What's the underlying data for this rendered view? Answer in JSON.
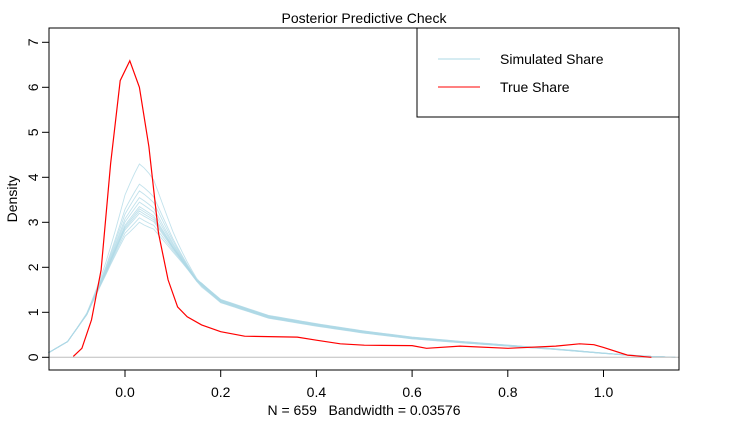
{
  "chart_data": {
    "type": "line",
    "title": "Posterior Predictive Check",
    "xlabel": "N = 659   Bandwidth = 0.03576",
    "ylabel": "Density",
    "xlim": [
      -0.16,
      1.16
    ],
    "ylim": [
      -0.25,
      7.35
    ],
    "x_ticks": [
      "0.0",
      "0.2",
      "0.4",
      "0.6",
      "0.8",
      "1.0"
    ],
    "y_ticks": [
      "0",
      "1",
      "2",
      "3",
      "4",
      "5",
      "6",
      "7"
    ],
    "grid": false,
    "legend": {
      "placement": "top-right",
      "entries": [
        "Simulated Share",
        "True Share"
      ]
    },
    "colors": {
      "simulated": "#add8e6",
      "true": "#ff0000",
      "zero_line": "#bebebe"
    },
    "series": [
      {
        "name": "Simulated Share",
        "x": [
          -0.16,
          -0.12,
          -0.08,
          -0.04,
          0.0,
          0.03,
          0.06,
          0.1,
          0.15,
          0.2,
          0.3,
          0.4,
          0.5,
          0.6,
          0.7,
          0.8,
          0.9,
          1.0,
          1.05,
          1.1,
          1.16
        ],
        "y": [
          0.1,
          0.35,
          0.95,
          1.9,
          2.9,
          3.3,
          3.1,
          2.45,
          1.7,
          1.25,
          0.9,
          0.72,
          0.56,
          0.43,
          0.34,
          0.26,
          0.18,
          0.09,
          0.05,
          0.02,
          0.0
        ],
        "simulated_peak_heights": [
          3.0,
          3.1,
          3.2,
          3.25,
          3.3,
          3.35,
          3.45,
          3.55,
          3.7,
          3.85,
          4.3
        ]
      },
      {
        "name": "True Share",
        "x": [
          -0.108,
          -0.09,
          -0.07,
          -0.05,
          -0.03,
          -0.01,
          0.01,
          0.03,
          0.05,
          0.07,
          0.09,
          0.11,
          0.13,
          0.16,
          0.2,
          0.25,
          0.36,
          0.4,
          0.45,
          0.5,
          0.6,
          0.63,
          0.7,
          0.8,
          0.9,
          0.95,
          0.98,
          1.0,
          1.05,
          1.1
        ],
        "y": [
          0.02,
          0.2,
          0.83,
          1.94,
          4.3,
          6.15,
          6.59,
          6.0,
          4.68,
          2.76,
          1.72,
          1.12,
          0.9,
          0.72,
          0.57,
          0.47,
          0.45,
          0.38,
          0.3,
          0.27,
          0.26,
          0.2,
          0.25,
          0.2,
          0.25,
          0.3,
          0.28,
          0.22,
          0.05,
          0.0
        ]
      }
    ]
  }
}
